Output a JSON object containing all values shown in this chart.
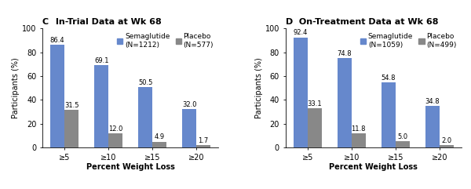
{
  "panel_C": {
    "title_bold": "C",
    "title_rest": " In-Trial Data at Wk 68",
    "categories": [
      "≥5",
      "≥10",
      "≥15",
      "≥20"
    ],
    "semaglutide_label": "Semaglutide\n(N=1212)",
    "placebo_label": "Placebo\n(N=577)",
    "semaglutide_values": [
      86.4,
      69.1,
      50.5,
      32.0
    ],
    "placebo_values": [
      31.5,
      12.0,
      4.9,
      1.7
    ]
  },
  "panel_D": {
    "title_bold": "D",
    "title_rest": " On-Treatment Data at Wk 68",
    "categories": [
      "≥5",
      "≥10",
      "≥15",
      "≥20"
    ],
    "semaglutide_label": "Semaglutide\n(N=1059)",
    "placebo_label": "Placebo\n(N=499)",
    "semaglutide_values": [
      92.4,
      74.8,
      54.8,
      34.8
    ],
    "placebo_values": [
      33.1,
      11.8,
      5.0,
      2.0
    ]
  },
  "semaglutide_color": "#6688CC",
  "placebo_color": "#888888",
  "ylabel": "Participants (%)",
  "xlabel": "Percent Weight Loss",
  "ylim": [
    0,
    100
  ],
  "yticks": [
    0,
    20,
    40,
    60,
    80,
    100
  ],
  "bar_width": 0.32,
  "title_fontsize": 8.0,
  "label_fontsize": 7.0,
  "tick_fontsize": 7.0,
  "annot_fontsize": 6.0,
  "legend_fontsize": 6.5,
  "background_color": "#ffffff"
}
